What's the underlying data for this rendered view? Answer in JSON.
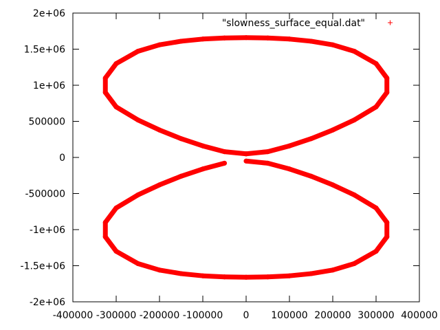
{
  "chart_data": {
    "type": "scatter",
    "title": "",
    "xlabel": "",
    "ylabel": "",
    "xlim": [
      -400000,
      400000
    ],
    "ylim": [
      -2000000,
      2000000
    ],
    "grid": false,
    "legend_position": "top-right",
    "x_ticks": [
      -400000,
      -300000,
      -200000,
      -100000,
      0,
      100000,
      200000,
      300000,
      400000
    ],
    "x_tick_labels": [
      "-400000",
      "-300000",
      "-200000",
      "-100000",
      "0",
      "100000",
      "200000",
      "300000",
      "400000"
    ],
    "y_ticks": [
      -2000000,
      -1500000,
      -1000000,
      -500000,
      0,
      500000,
      1000000,
      1500000,
      2000000
    ],
    "y_tick_labels": [
      "-2e+06",
      "-1.5e+06",
      "-1e+06",
      "-500000",
      "0",
      "500000",
      "1e+06",
      "1.5e+06",
      "2e+06"
    ],
    "series": [
      {
        "name": "\"slowness_surface_equal.dat\"",
        "color": "#ff0000",
        "marker": "plus",
        "x": [
          0,
          50000,
          100000,
          150000,
          200000,
          250000,
          300000,
          325000,
          325000,
          300000,
          250000,
          200000,
          150000,
          100000,
          50000,
          0,
          -50000,
          -100000,
          -150000,
          -200000,
          -250000,
          -300000,
          -325000,
          -325000,
          -300000,
          -250000,
          -200000,
          -150000,
          -100000,
          -50000,
          0,
          0,
          50000,
          100000,
          150000,
          200000,
          250000,
          300000,
          325000,
          325000,
          300000,
          250000,
          200000,
          150000,
          100000,
          50000,
          0,
          -50000,
          -100000,
          -150000,
          -200000,
          -250000,
          -300000,
          -325000,
          -325000,
          -300000,
          -250000,
          -200000,
          -150000,
          -100000,
          -50000
        ],
        "y": [
          50000,
          80000,
          160000,
          260000,
          380000,
          520000,
          700000,
          900000,
          1100000,
          1300000,
          1470000,
          1560000,
          1610000,
          1640000,
          1655000,
          1660000,
          1655000,
          1640000,
          1610000,
          1560000,
          1470000,
          1300000,
          1100000,
          900000,
          700000,
          520000,
          380000,
          260000,
          160000,
          80000,
          50000,
          -50000,
          -80000,
          -160000,
          -260000,
          -380000,
          -520000,
          -700000,
          -900000,
          -1100000,
          -1300000,
          -1470000,
          -1560000,
          -1610000,
          -1640000,
          -1655000,
          -1660000,
          -1655000,
          -1640000,
          -1610000,
          -1560000,
          -1470000,
          -1300000,
          -1100000,
          -900000,
          -700000,
          -520000,
          -380000,
          -260000,
          -160000,
          -80000
        ]
      }
    ]
  }
}
